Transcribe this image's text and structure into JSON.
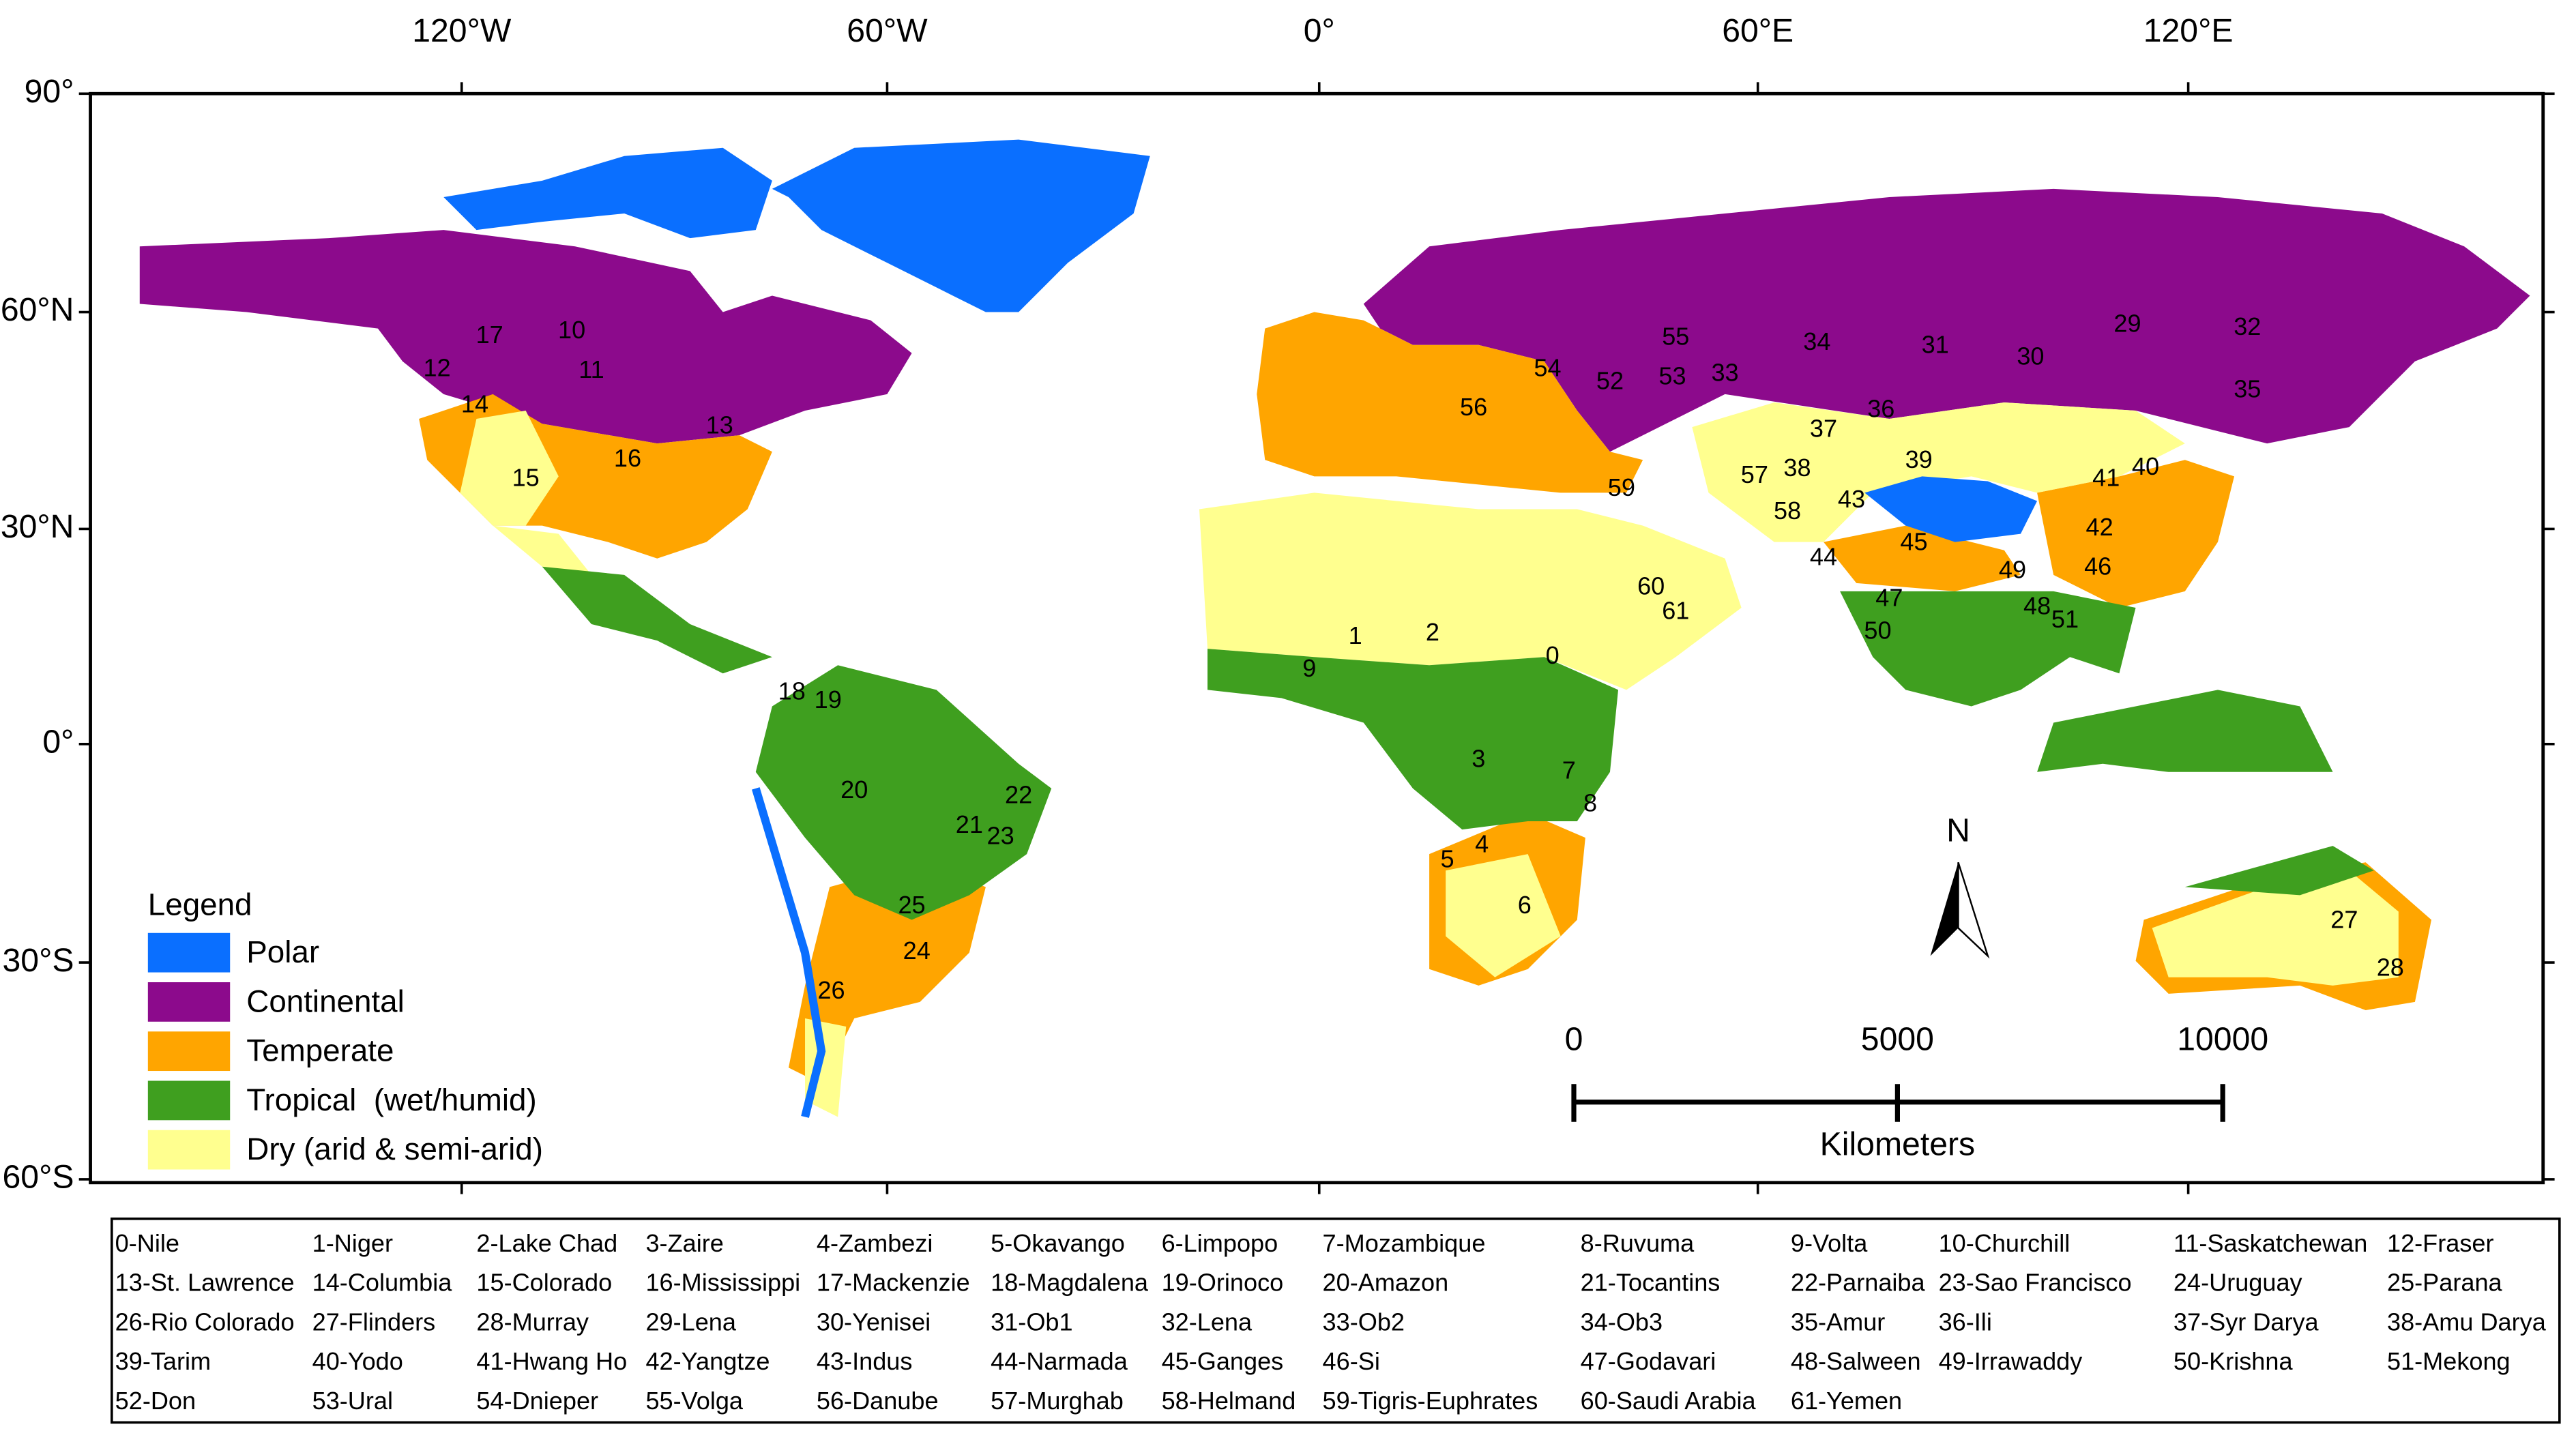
{
  "map": {
    "lon_labels": [
      "120°W",
      "60°W",
      "0°",
      "60°E",
      "120°E"
    ],
    "lat_labels": [
      "90°",
      "60°N",
      "30°N",
      "0°",
      "30°S",
      "60°S"
    ],
    "legend": {
      "title": "Legend",
      "items": [
        "Polar",
        "Continental",
        "Temperate",
        "Tropical  (wet/humid)",
        "Dry (arid & semi-arid)"
      ]
    },
    "scale_bar": {
      "labels": [
        "0",
        "5000",
        "10000"
      ],
      "unit": "Kilometers"
    },
    "north": "N",
    "basin_labels": [
      "0",
      "1",
      "2",
      "3",
      "4",
      "5",
      "6",
      "7",
      "8",
      "9",
      "10",
      "11",
      "12",
      "13",
      "14",
      "15",
      "16",
      "17",
      "18",
      "19",
      "20",
      "21",
      "22",
      "23",
      "24",
      "25",
      "26",
      "27",
      "28",
      "29",
      "30",
      "31",
      "32",
      "33",
      "34",
      "35",
      "36",
      "37",
      "38",
      "39",
      "40",
      "41",
      "42",
      "43",
      "44",
      "45",
      "46",
      "47",
      "48",
      "49",
      "50",
      "51",
      "52",
      "53",
      "54",
      "55",
      "56",
      "57",
      "58",
      "59",
      "60",
      "61"
    ]
  },
  "basin_list": [
    "0-Nile",
    "1-Niger",
    "2-Lake Chad",
    "3-Zaire",
    "4-Zambezi",
    "5-Okavango",
    "6-Limpopo",
    "7-Mozambique",
    "8-Ruvuma",
    "9-Volta",
    "10-Churchill",
    "11-Saskatchewan",
    "12-Fraser",
    "13-St. Lawrence",
    "14-Columbia",
    "15-Colorado",
    "16-Mississippi",
    "17-Mackenzie",
    "18-Magdalena",
    "19-Orinoco",
    "20-Amazon",
    "21-Tocantins",
    "22-Parnaiba",
    "23-Sao Francisco",
    "24-Uruguay",
    "25-Parana",
    "26-Rio Colorado",
    "27-Flinders",
    "28-Murray",
    "29-Lena",
    "30-Yenisei",
    "31-Ob1",
    "32-Lena",
    "33-Ob2",
    "34-Ob3",
    "35-Amur",
    "36-Ili",
    "37-Syr Darya",
    "38-Amu Darya",
    "39-Tarim",
    "40-Yodo",
    "41-Hwang Ho",
    "42-Yangtze",
    "43-Indus",
    "44-Narmada",
    "45-Ganges",
    "46-Si",
    "47-Godavari",
    "48-Salween",
    "49-Irrawaddy",
    "50-Krishna",
    "51-Mekong",
    "52-Don",
    "53-Ural",
    "54-Dnieper",
    "55-Volga",
    "56-Danube",
    "57-Murghab",
    "58-Helmand",
    "59-Tigris-Euphrates",
    "60-Saudi Arabia",
    "61-Yemen"
  ]
}
